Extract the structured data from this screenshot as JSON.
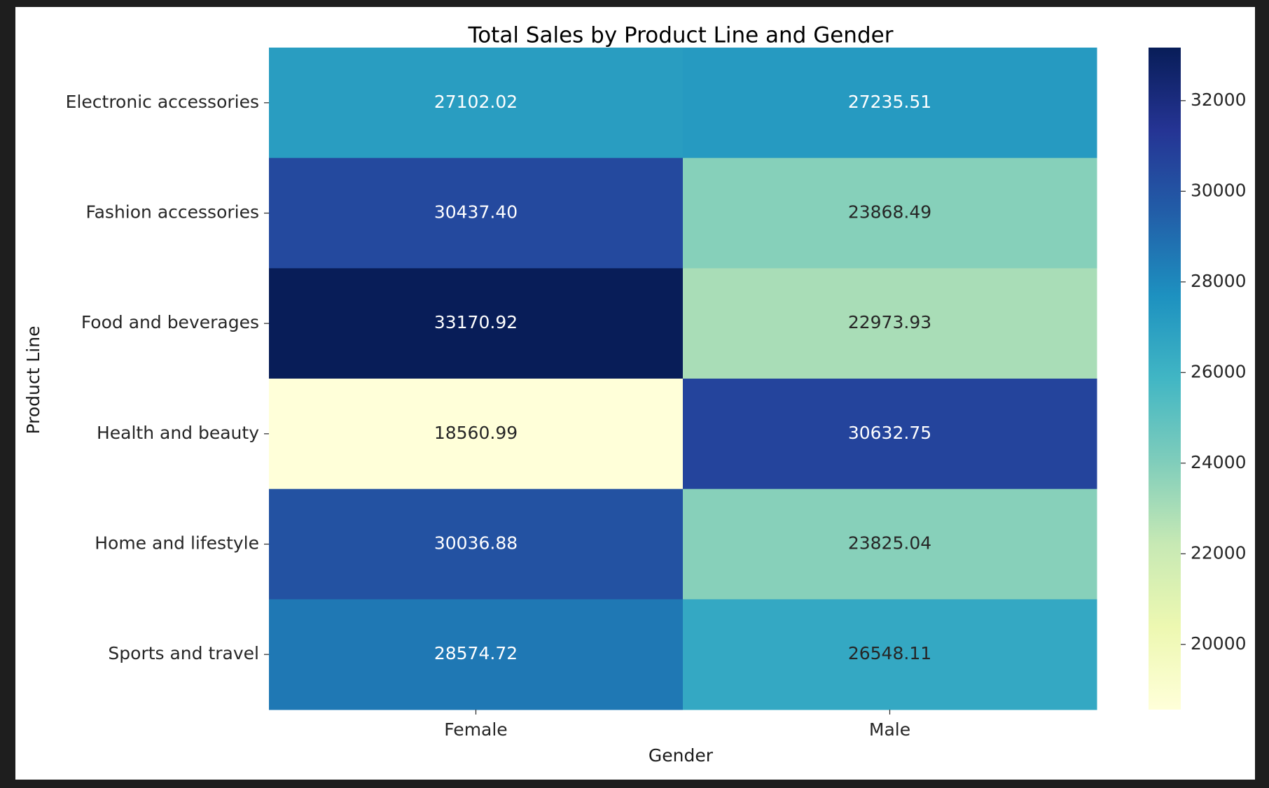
{
  "chart_data": {
    "type": "heatmap",
    "title": "Total Sales by Product Line and Gender",
    "xlabel": "Gender",
    "ylabel": "Product Line",
    "columns": [
      "Female",
      "Male"
    ],
    "rows": [
      "Electronic accessories",
      "Fashion accessories",
      "Food and beverages",
      "Health and beauty",
      "Home and lifestyle",
      "Sports and travel"
    ],
    "values": [
      [
        27102.02,
        27235.51
      ],
      [
        30437.4,
        23868.49
      ],
      [
        33170.92,
        22973.93
      ],
      [
        18560.99,
        30632.75
      ],
      [
        30036.88,
        23825.04
      ],
      [
        28574.72,
        26548.11
      ]
    ],
    "value_labels": [
      [
        "27102.02",
        "27235.51"
      ],
      [
        "30437.40",
        "23868.49"
      ],
      [
        "33170.92",
        "22973.93"
      ],
      [
        "18560.99",
        "30632.75"
      ],
      [
        "30036.88",
        "23825.04"
      ],
      [
        "28574.72",
        "26548.11"
      ]
    ],
    "colorbar": {
      "colormap": "YlGnBu",
      "range": [
        18560.99,
        33170.92
      ],
      "ticks": [
        20000,
        22000,
        24000,
        26000,
        28000,
        30000,
        32000
      ],
      "tick_labels": [
        "20000",
        "22000",
        "24000",
        "26000",
        "28000",
        "30000",
        "32000"
      ]
    },
    "colormap_stops": [
      "#ffffd9",
      "#edf8b1",
      "#c7e9b4",
      "#7fcdbb",
      "#41b6c4",
      "#1d91c0",
      "#225ea8",
      "#253494",
      "#081d58"
    ],
    "annotation_colors": {
      "light": "#ffffff",
      "dark": "#262626"
    }
  }
}
